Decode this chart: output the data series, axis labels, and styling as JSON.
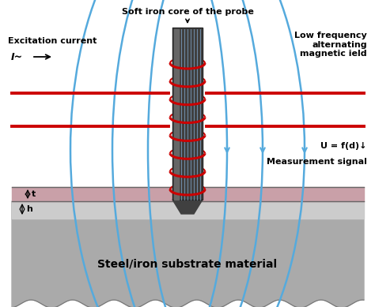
{
  "bg_color": "#ffffff",
  "substrate_color": "#aaaaaa",
  "substrate_top_color": "#cccccc",
  "coating_color": "#c9a0a8",
  "probe_body_color": "#404040",
  "probe_stripe_color": "#707070",
  "coil_color": "#cc0000",
  "field_line_color": "#55aadd",
  "excitation_line_color": "#cc0000",
  "title_text": "Soft iron core of the probe",
  "label_excitation": "Excitation current",
  "label_I": "I~",
  "label_low_freq": "Low frequency\nalternating\nmagnetic ield",
  "label_U": "U = f(d)↓",
  "label_meas": "Measurement signal",
  "label_t": "t",
  "label_h": "h",
  "label_substrate": "Steel/iron substrate material",
  "figwidth": 4.74,
  "figheight": 3.89,
  "dpi": 100
}
